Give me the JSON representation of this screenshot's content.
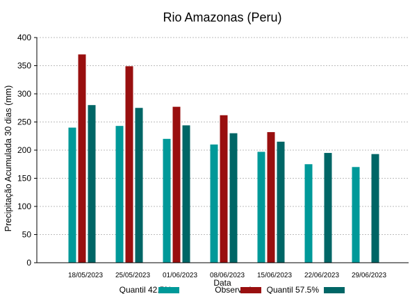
{
  "chart_data": {
    "type": "bar",
    "title": "Rio Amazonas (Peru)",
    "xlabel": "Data",
    "ylabel": "Precipitação Acumulada 30 dias (mm)",
    "ylim": [
      0,
      400
    ],
    "yticks": [
      0,
      50,
      100,
      150,
      200,
      250,
      300,
      350,
      400
    ],
    "grid": "horizontal-dashed",
    "legend_position": "bottom",
    "categories": [
      "18/05/2023",
      "25/05/2023",
      "01/06/2023",
      "08/06/2023",
      "15/06/2023",
      "22/06/2023",
      "29/06/2023"
    ],
    "series": [
      {
        "name": "Quantil 42.5%",
        "color": "#009999",
        "values": [
          240,
          243,
          220,
          210,
          197,
          175,
          170
        ]
      },
      {
        "name": "Observado",
        "color": "#990f0f",
        "values": [
          370,
          349,
          277,
          262,
          232,
          null,
          null
        ]
      },
      {
        "name": "Quantil 57.5%",
        "color": "#006666",
        "values": [
          280,
          275,
          244,
          230,
          215,
          195,
          193
        ]
      }
    ]
  }
}
